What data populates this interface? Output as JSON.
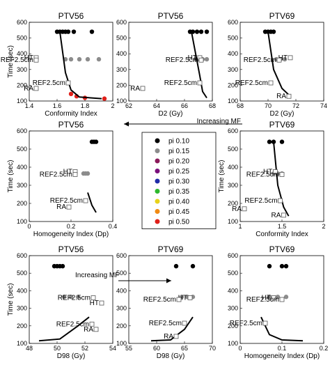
{
  "figure": {
    "legend_entries": [
      "pi 0.10",
      "pi 0.15",
      "pi 0.20",
      "pi 0.25",
      "pi 0.30",
      "pi 0.35",
      "pi 0.40",
      "pi 0.45",
      "pi 0.50"
    ],
    "legend_colors": [
      "#000000",
      "#8c8c8c",
      "#8b1a5a",
      "#7a0f7a",
      "#1f2ca8",
      "#2db82d",
      "#e8d21a",
      "#f08a12",
      "#e0201a"
    ],
    "arrows": [
      {
        "text": "Increasing MF",
        "direction": "left"
      },
      {
        "text": "Increasing MF",
        "direction": "right"
      }
    ]
  },
  "chart_data": [
    {
      "type": "scatter",
      "title": "PTV56",
      "xlabel": "Conformity Index",
      "ylabel": "Time (sec)",
      "xlim": [
        1.4,
        2.0
      ],
      "ylim": [
        100,
        600
      ],
      "xticks": [
        "1.4",
        "1.6",
        "1.8",
        "2"
      ],
      "yticks": [
        "100",
        "200",
        "300",
        "400",
        "500",
        "600"
      ],
      "markers": [
        {
          "label": "HT",
          "x": 1.45,
          "y": 375
        },
        {
          "label": "REF2.5cm",
          "x": 1.45,
          "y": 360
        },
        {
          "label": "RA",
          "x": 1.45,
          "y": 180
        },
        {
          "label": "REF2.5cm",
          "x": 1.68,
          "y": 215
        }
      ],
      "series": [
        {
          "name": "pi 0.10",
          "x": [
            1.6,
            1.62,
            1.64,
            1.66,
            1.68,
            1.72,
            1.85
          ],
          "y": [
            540,
            540,
            540,
            540,
            540,
            540,
            540
          ]
        },
        {
          "name": "pi 0.15",
          "x": [
            1.66,
            1.7,
            1.76,
            1.82,
            1.9
          ],
          "y": [
            365,
            365,
            365,
            365,
            365
          ]
        },
        {
          "name": "pi 0.50",
          "x": [
            1.7,
            1.74,
            1.8,
            1.94
          ],
          "y": [
            145,
            130,
            120,
            115
          ]
        }
      ],
      "line": {
        "x": [
          1.62,
          1.66,
          1.7,
          1.76,
          1.92
        ],
        "y": [
          540,
          280,
          170,
          125,
          115
        ]
      }
    },
    {
      "type": "scatter",
      "title": "PTV56",
      "xlabel": "D2 (Gy)",
      "ylabel": "",
      "xlim": [
        62,
        68
      ],
      "ylim": [
        100,
        600
      ],
      "xticks": [
        "62",
        "64",
        "66",
        "68"
      ],
      "yticks": [
        "100",
        "200",
        "300",
        "400",
        "500",
        "600"
      ],
      "markers": [
        {
          "label": "HT",
          "x": 67.1,
          "y": 375
        },
        {
          "label": "REF2.5cm",
          "x": 67.2,
          "y": 360
        },
        {
          "label": "RA",
          "x": 63.0,
          "y": 180
        },
        {
          "label": "REF2.5cm",
          "x": 67.1,
          "y": 215
        }
      ],
      "series": [
        {
          "name": "pi 0.10",
          "x": [
            66.4,
            66.6,
            66.9,
            67.2,
            67.6
          ],
          "y": [
            540,
            540,
            540,
            540,
            540
          ]
        },
        {
          "name": "pi 0.15",
          "x": [
            66.8,
            67.0,
            67.3,
            67.6
          ],
          "y": [
            365,
            365,
            365,
            365
          ]
        }
      ],
      "line": {
        "x": [
          66.5,
          67.1,
          67.3,
          67.6
        ],
        "y": [
          540,
          260,
          160,
          120
        ]
      }
    },
    {
      "type": "scatter",
      "title": "PTV69",
      "xlabel": "D2 (Gy)",
      "ylabel": "",
      "xlim": [
        68,
        74
      ],
      "ylim": [
        100,
        600
      ],
      "xticks": [
        "68",
        "70",
        "72",
        "74"
      ],
      "yticks": [
        "100",
        "200",
        "300",
        "400",
        "500",
        "600"
      ],
      "markers": [
        {
          "label": "HT",
          "x": 71.6,
          "y": 375
        },
        {
          "label": "REF2.5cm",
          "x": 70.8,
          "y": 360
        },
        {
          "label": "RA",
          "x": 71.5,
          "y": 130
        },
        {
          "label": "REF2.5cm",
          "x": 70.2,
          "y": 215
        }
      ],
      "series": [
        {
          "name": "pi 0.10",
          "x": [
            69.8,
            70.0,
            70.2,
            70.4
          ],
          "y": [
            540,
            540,
            540,
            540
          ]
        },
        {
          "name": "pi 0.15",
          "x": [
            70.6,
            70.9,
            71.2
          ],
          "y": [
            365,
            365,
            365
          ]
        }
      ],
      "line": {
        "x": [
          70.0,
          70.4,
          71.0,
          71.6
        ],
        "y": [
          540,
          300,
          180,
          130
        ]
      }
    },
    {
      "type": "scatter",
      "title": "PTV56",
      "xlabel": "Homogeneity Index (Dp)",
      "ylabel": "Time (sec)",
      "xlim": [
        0,
        0.4
      ],
      "ylim": [
        100,
        600
      ],
      "xticks": [
        "0",
        "0.2",
        "0.4"
      ],
      "yticks": [
        "100",
        "200",
        "300",
        "400",
        "500",
        "600"
      ],
      "markers": [
        {
          "label": "HT",
          "x": 0.22,
          "y": 375
        },
        {
          "label": "REF2.5cm",
          "x": 0.22,
          "y": 360
        },
        {
          "label": "RA",
          "x": 0.19,
          "y": 180
        },
        {
          "label": "REF2.5cm",
          "x": 0.27,
          "y": 215
        }
      ],
      "series": [
        {
          "name": "pi 0.10",
          "x": [
            0.3,
            0.31,
            0.32
          ],
          "y": [
            540,
            540,
            540
          ]
        },
        {
          "name": "pi 0.15",
          "x": [
            0.26,
            0.27,
            0.28
          ],
          "y": [
            365,
            365,
            365
          ]
        }
      ],
      "line": {
        "x": [
          0.28,
          0.3,
          0.32
        ],
        "y": [
          260,
          190,
          150
        ]
      }
    },
    {
      "type": "scatter",
      "title": "PTV69",
      "xlabel": "Conformity Index",
      "ylabel": "Time (sec)",
      "xlim": [
        1,
        2
      ],
      "ylim": [
        100,
        600
      ],
      "xticks": [
        "1",
        "1.5",
        "2"
      ],
      "yticks": [
        "100",
        "200",
        "300",
        "400",
        "500",
        "600"
      ],
      "markers": [
        {
          "label": "HT",
          "x": 1.42,
          "y": 375
        },
        {
          "label": "REF2.5cm",
          "x": 1.5,
          "y": 360
        },
        {
          "label": "RA",
          "x": 1.05,
          "y": 170
        },
        {
          "label": "REF2.5cm",
          "x": 1.48,
          "y": 215
        },
        {
          "label": "RA",
          "x": 1.52,
          "y": 135
        }
      ],
      "series": [
        {
          "name": "pi 0.10",
          "x": [
            1.35,
            1.4,
            1.5
          ],
          "y": [
            540,
            540,
            540
          ]
        },
        {
          "name": "pi 0.15",
          "x": [
            1.4,
            1.45,
            1.5
          ],
          "y": [
            365,
            365,
            365
          ]
        }
      ],
      "line": {
        "x": [
          1.4,
          1.45,
          1.52,
          1.58
        ],
        "y": [
          540,
          300,
          180,
          130
        ]
      }
    },
    {
      "type": "scatter",
      "title": "PTV56",
      "xlabel": "D98 (Gy)",
      "ylabel": "Time (sec)",
      "xlim": [
        48,
        54
      ],
      "ylim": [
        100,
        600
      ],
      "xticks": [
        "48",
        "50",
        "52",
        "54"
      ],
      "yticks": [
        "100",
        "200",
        "300",
        "400",
        "500",
        "600"
      ],
      "markers": [
        {
          "label": "HT",
          "x": 53.2,
          "y": 330
        },
        {
          "label": "REF2.5cm",
          "x": 52.6,
          "y": 360
        },
        {
          "label": "REF2.5cm",
          "x": 52.5,
          "y": 210
        },
        {
          "label": "RA",
          "x": 52.8,
          "y": 180
        }
      ],
      "series": [
        {
          "name": "pi 0.10",
          "x": [
            49.8,
            50.0,
            50.2,
            50.4
          ],
          "y": [
            540,
            540,
            540,
            540
          ]
        },
        {
          "name": "pi 0.15",
          "x": [
            50.5,
            51.0,
            51.5
          ],
          "y": [
            365,
            365,
            365
          ]
        }
      ],
      "line": {
        "x": [
          48.7,
          50.2,
          51.5,
          52.3
        ],
        "y": [
          115,
          125,
          200,
          250
        ]
      }
    },
    {
      "type": "scatter",
      "title": "PTV69",
      "xlabel": "D98 (Gy)",
      "ylabel": "",
      "xlim": [
        55,
        70
      ],
      "ylim": [
        100,
        600
      ],
      "xticks": [
        "55",
        "60",
        "65",
        "70"
      ],
      "yticks": [
        "100",
        "200",
        "300",
        "400",
        "500",
        "600"
      ],
      "markers": [
        {
          "label": "HT",
          "x": 66.0,
          "y": 360
        },
        {
          "label": "REF2.5cm",
          "x": 64.0,
          "y": 350
        },
        {
          "label": "REF2.5cm",
          "x": 65.0,
          "y": 215
        },
        {
          "label": "RA",
          "x": 63.5,
          "y": 140
        }
      ],
      "series": [
        {
          "name": "pi 0.10",
          "x": [
            63.5,
            66.5
          ],
          "y": [
            540,
            540
          ]
        },
        {
          "name": "pi 0.15",
          "x": [
            64.5,
            65.5,
            66.5
          ],
          "y": [
            365,
            365,
            365
          ]
        }
      ],
      "line": {
        "x": [
          59.0,
          62.5,
          65.0,
          66.5
        ],
        "y": [
          115,
          120,
          180,
          250
        ]
      }
    },
    {
      "type": "scatter",
      "title": "PTV69",
      "xlabel": "Homogeneity Index (Dp)",
      "ylabel": "",
      "xlim": [
        0,
        0.2
      ],
      "ylim": [
        100,
        600
      ],
      "xticks": [
        "0",
        "0.1",
        "0.2"
      ],
      "yticks": [
        "100",
        "200",
        "300",
        "400",
        "500",
        "600"
      ],
      "markers": [
        {
          "label": "HT",
          "x": 0.08,
          "y": 360
        },
        {
          "label": "REF2.5cm",
          "x": 0.1,
          "y": 350
        },
        {
          "label": "REF2.5cm",
          "x": 0.06,
          "y": 215
        }
      ],
      "series": [
        {
          "name": "pi 0.10",
          "x": [
            0.07,
            0.1,
            0.11
          ],
          "y": [
            540,
            540,
            540
          ]
        },
        {
          "name": "pi 0.15",
          "x": [
            0.07,
            0.09,
            0.11
          ],
          "y": [
            365,
            365,
            365
          ]
        }
      ],
      "line": {
        "x": [
          0.05,
          0.07,
          0.1,
          0.15
        ],
        "y": [
          250,
          150,
          120,
          115
        ]
      }
    }
  ]
}
